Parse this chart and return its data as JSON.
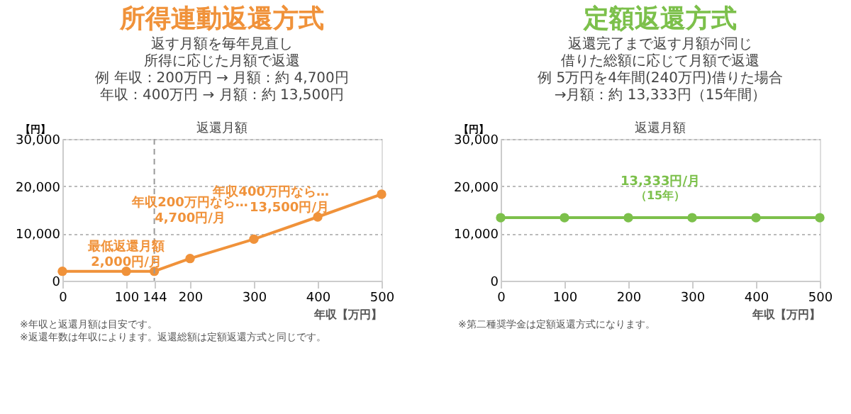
{
  "chart_data": [
    {
      "type": "line",
      "title": "所得連動返還方式",
      "subtitle": [
        "返す月額を毎年見直し",
        "所得に応じた月額で返還",
        "例 年収：200万円 → 月額：約 4,700円",
        "年収：400万円 → 月額：約 13,500円"
      ],
      "xlabel": "年収【万円】",
      "ylabel": "【円】",
      "x": [
        0,
        100,
        144,
        200,
        300,
        400,
        500
      ],
      "series": [
        {
          "color": "#f0923a",
          "values": [
            2000,
            2000,
            2000,
            4700,
            8800,
            13500,
            18300
          ]
        }
      ],
      "xlim": [
        0,
        500
      ],
      "xticks": [
        0,
        100,
        144,
        200,
        300,
        400,
        500
      ],
      "ylim": [
        0,
        30000
      ],
      "yticks": [
        0,
        {
          "value": 10000,
          "label": "10,000"
        },
        {
          "value": 20000,
          "label": "20,000"
        },
        {
          "value": 30000,
          "label": "30,000"
        }
      ],
      "ref_lines": [
        {
          "axis": "x",
          "value": 144,
          "color": "#999999",
          "line_style": "dashed"
        }
      ],
      "grid": "y",
      "marker": "circle",
      "annotations": [
        "返還月額",
        {
          "text": "最低返還月額\n2,000円/月",
          "x": 100,
          "y": 2000
        },
        {
          "text": "年収200万円なら…\n4,700円/月",
          "x": 200,
          "y": 4700
        },
        {
          "text": "年収400万円なら…\n13,500円/月",
          "x": 400,
          "y": 13500
        },
        "※年収と返還月額は目安です。",
        "※返還年数は年収によります。返還総額は定額返還方式と同じです。"
      ]
    },
    {
      "type": "line",
      "title": "定額返還方式",
      "subtitle": [
        "返還完了まで返す月額が同じ",
        "借りた総額に応じて月額で返還",
        "例 5万円を4年間(240万円)借りた場合",
        "→月額：約 13,333円（15年間）"
      ],
      "xlabel": "年収【万円】",
      "ylabel": "【円】",
      "x": [
        0,
        100,
        200,
        300,
        400,
        500
      ],
      "series": [
        {
          "color": "#7cc04b",
          "values": [
            13333,
            13333,
            13333,
            13333,
            13333,
            13333
          ]
        }
      ],
      "xlim": [
        0,
        500
      ],
      "xticks": [
        0,
        100,
        200,
        300,
        400,
        500
      ],
      "ylim": [
        0,
        30000
      ],
      "yticks": [
        0,
        {
          "value": 10000,
          "label": "10,000"
        },
        {
          "value": 20000,
          "label": "20,000"
        },
        {
          "value": 30000,
          "label": "30,000"
        }
      ],
      "grid": "y",
      "marker": "circle",
      "annotations": [
        "返還月額",
        {
          "text": "13,333円/月",
          "x": 250,
          "y": 13333
        },
        {
          "text": "（15年）",
          "x": 250,
          "y": 13333
        },
        "※第二種奨学金は定額返還方式になります。"
      ]
    }
  ]
}
